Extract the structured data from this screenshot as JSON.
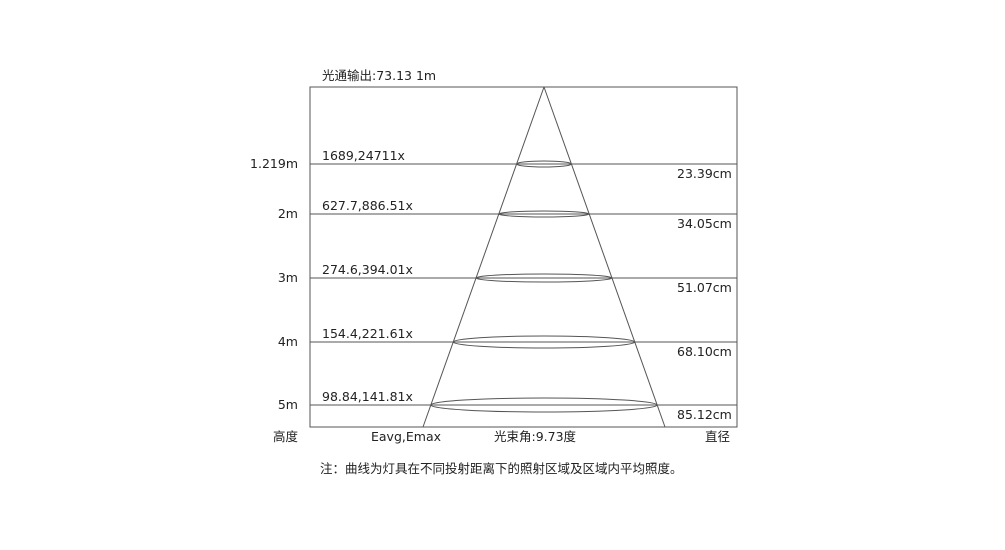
{
  "title": "光通输出:73.13  1m",
  "rows": [
    {
      "height": "1.219m",
      "illuminance": "1689,24711x",
      "diameter": "23.39cm"
    },
    {
      "height": "2m",
      "illuminance": "627.7,886.51x",
      "diameter": "34.05cm"
    },
    {
      "height": "3m",
      "illuminance": "274.6,394.01x",
      "diameter": "51.07cm"
    },
    {
      "height": "4m",
      "illuminance": "154.4,221.61x",
      "diameter": "68.10cm"
    },
    {
      "height": "5m",
      "illuminance": "98.84,141.81x",
      "diameter": "85.12cm"
    }
  ],
  "footer": {
    "height_label": "高度",
    "illuminance_label": "Eavg,Emax",
    "beam_angle": "光束角:9.73度",
    "diameter_label": "直径"
  },
  "note": "注：曲线为灯具在不同投射距离下的照射区域及区域内平均照度。",
  "colors": {
    "line": "#555555",
    "text": "#222222"
  }
}
